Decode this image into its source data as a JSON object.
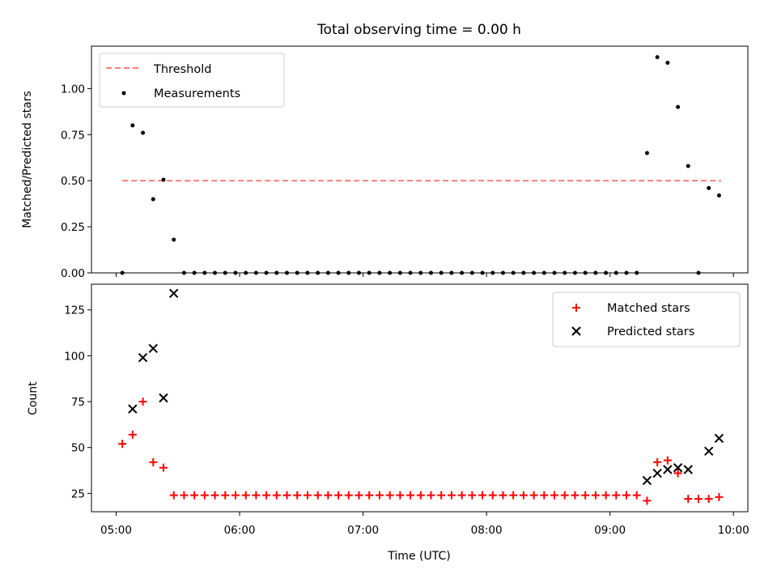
{
  "chart_data": [
    {
      "type": "scatter",
      "title": "Total observing time = 0.00 h",
      "ylabel": "Matched/Predicted stars",
      "xlabel": "",
      "xlim": [
        "04:48",
        "10:07"
      ],
      "ylim": [
        0,
        1.23
      ],
      "grid": false,
      "legend": "top-left",
      "yticks": [
        {
          "v": 0,
          "label": "0.00"
        },
        {
          "v": 0.25,
          "label": "0.25"
        },
        {
          "v": 0.5,
          "label": "0.50"
        },
        {
          "v": 0.75,
          "label": "0.75"
        },
        {
          "v": 1.0,
          "label": "1.00"
        }
      ],
      "xticks": [
        "05:00",
        "06:00",
        "07:00",
        "08:00",
        "09:00",
        "10:00"
      ],
      "series": [
        {
          "name": "Threshold",
          "style": "dashed-line",
          "color": "#ff7f7f",
          "points": [
            [
              "05:03",
              0.5
            ],
            [
              "09:54",
              0.5
            ]
          ]
        },
        {
          "name": "Measurements",
          "style": "dot",
          "color": "#000000",
          "points": [
            [
              "05:03",
              0.0
            ],
            [
              "05:08",
              0.8
            ],
            [
              "05:13",
              0.76
            ],
            [
              "05:18",
              0.4
            ],
            [
              "05:23",
              0.505
            ],
            [
              "05:28",
              0.18
            ],
            [
              "05:33",
              0.0
            ],
            [
              "05:38",
              0.0
            ],
            [
              "05:43",
              0.0
            ],
            [
              "05:48",
              0.0
            ],
            [
              "05:53",
              0.0
            ],
            [
              "05:58",
              0.0
            ],
            [
              "06:03",
              0.0
            ],
            [
              "06:08",
              0.0
            ],
            [
              "06:13",
              0.0
            ],
            [
              "06:18",
              0.0
            ],
            [
              "06:23",
              0.0
            ],
            [
              "06:28",
              0.0
            ],
            [
              "06:33",
              0.0
            ],
            [
              "06:38",
              0.0
            ],
            [
              "06:43",
              0.0
            ],
            [
              "06:48",
              0.0
            ],
            [
              "06:53",
              0.0
            ],
            [
              "06:58",
              0.0
            ],
            [
              "07:03",
              0.0
            ],
            [
              "07:08",
              0.0
            ],
            [
              "07:13",
              0.0
            ],
            [
              "07:18",
              0.0
            ],
            [
              "07:23",
              0.0
            ],
            [
              "07:28",
              0.0
            ],
            [
              "07:33",
              0.0
            ],
            [
              "07:38",
              0.0
            ],
            [
              "07:43",
              0.0
            ],
            [
              "07:48",
              0.0
            ],
            [
              "07:53",
              0.0
            ],
            [
              "07:58",
              0.0
            ],
            [
              "08:03",
              0.0
            ],
            [
              "08:08",
              0.0
            ],
            [
              "08:13",
              0.0
            ],
            [
              "08:18",
              0.0
            ],
            [
              "08:23",
              0.0
            ],
            [
              "08:28",
              0.0
            ],
            [
              "08:33",
              0.0
            ],
            [
              "08:38",
              0.0
            ],
            [
              "08:43",
              0.0
            ],
            [
              "08:48",
              0.0
            ],
            [
              "08:53",
              0.0
            ],
            [
              "08:58",
              0.0
            ],
            [
              "09:03",
              0.0
            ],
            [
              "09:08",
              0.0
            ],
            [
              "09:13",
              0.0
            ],
            [
              "09:18",
              0.65
            ],
            [
              "09:23",
              1.17
            ],
            [
              "09:28",
              1.14
            ],
            [
              "09:33",
              0.9
            ],
            [
              "09:38",
              0.58
            ],
            [
              "09:43",
              0.0
            ],
            [
              "09:48",
              0.46
            ],
            [
              "09:53",
              0.42
            ]
          ]
        }
      ]
    },
    {
      "type": "scatter",
      "title": "",
      "ylabel": "Count",
      "xlabel": "Time (UTC)",
      "xlim": [
        "04:48",
        "10:07"
      ],
      "ylim": [
        15,
        139
      ],
      "grid": false,
      "legend": "top-right",
      "yticks": [
        {
          "v": 25,
          "label": "25"
        },
        {
          "v": 50,
          "label": "50"
        },
        {
          "v": 75,
          "label": "75"
        },
        {
          "v": 100,
          "label": "100"
        },
        {
          "v": 125,
          "label": "125"
        }
      ],
      "xticks": [
        "05:00",
        "06:00",
        "07:00",
        "08:00",
        "09:00",
        "10:00"
      ],
      "series": [
        {
          "name": "Matched stars",
          "style": "plus",
          "color": "#ff0000",
          "points": [
            [
              "05:03",
              52
            ],
            [
              "05:08",
              57
            ],
            [
              "05:13",
              75
            ],
            [
              "05:18",
              42
            ],
            [
              "05:23",
              39
            ],
            [
              "05:28",
              24
            ],
            [
              "05:33",
              24
            ],
            [
              "05:38",
              24
            ],
            [
              "05:43",
              24
            ],
            [
              "05:48",
              24
            ],
            [
              "05:53",
              24
            ],
            [
              "05:58",
              24
            ],
            [
              "06:03",
              24
            ],
            [
              "06:08",
              24
            ],
            [
              "06:13",
              24
            ],
            [
              "06:18",
              24
            ],
            [
              "06:23",
              24
            ],
            [
              "06:28",
              24
            ],
            [
              "06:33",
              24
            ],
            [
              "06:38",
              24
            ],
            [
              "06:43",
              24
            ],
            [
              "06:48",
              24
            ],
            [
              "06:53",
              24
            ],
            [
              "06:58",
              24
            ],
            [
              "07:03",
              24
            ],
            [
              "07:08",
              24
            ],
            [
              "07:13",
              24
            ],
            [
              "07:18",
              24
            ],
            [
              "07:23",
              24
            ],
            [
              "07:28",
              24
            ],
            [
              "07:33",
              24
            ],
            [
              "07:38",
              24
            ],
            [
              "07:43",
              24
            ],
            [
              "07:48",
              24
            ],
            [
              "07:53",
              24
            ],
            [
              "07:58",
              24
            ],
            [
              "08:03",
              24
            ],
            [
              "08:08",
              24
            ],
            [
              "08:13",
              24
            ],
            [
              "08:18",
              24
            ],
            [
              "08:23",
              24
            ],
            [
              "08:28",
              24
            ],
            [
              "08:33",
              24
            ],
            [
              "08:38",
              24
            ],
            [
              "08:43",
              24
            ],
            [
              "08:48",
              24
            ],
            [
              "08:53",
              24
            ],
            [
              "08:58",
              24
            ],
            [
              "09:03",
              24
            ],
            [
              "09:08",
              24
            ],
            [
              "09:13",
              24
            ],
            [
              "09:18",
              21
            ],
            [
              "09:23",
              42
            ],
            [
              "09:28",
              43
            ],
            [
              "09:33",
              36
            ],
            [
              "09:38",
              22
            ],
            [
              "09:43",
              22
            ],
            [
              "09:48",
              22
            ],
            [
              "09:53",
              23
            ]
          ]
        },
        {
          "name": "Predicted stars",
          "style": "x",
          "color": "#000000",
          "points": [
            [
              "05:08",
              71
            ],
            [
              "05:13",
              99
            ],
            [
              "05:18",
              104
            ],
            [
              "05:23",
              77
            ],
            [
              "05:28",
              134
            ],
            [
              "09:18",
              32
            ],
            [
              "09:23",
              36
            ],
            [
              "09:28",
              38
            ],
            [
              "09:33",
              39
            ],
            [
              "09:38",
              38
            ],
            [
              "09:48",
              48
            ],
            [
              "09:53",
              55
            ]
          ]
        }
      ]
    }
  ]
}
